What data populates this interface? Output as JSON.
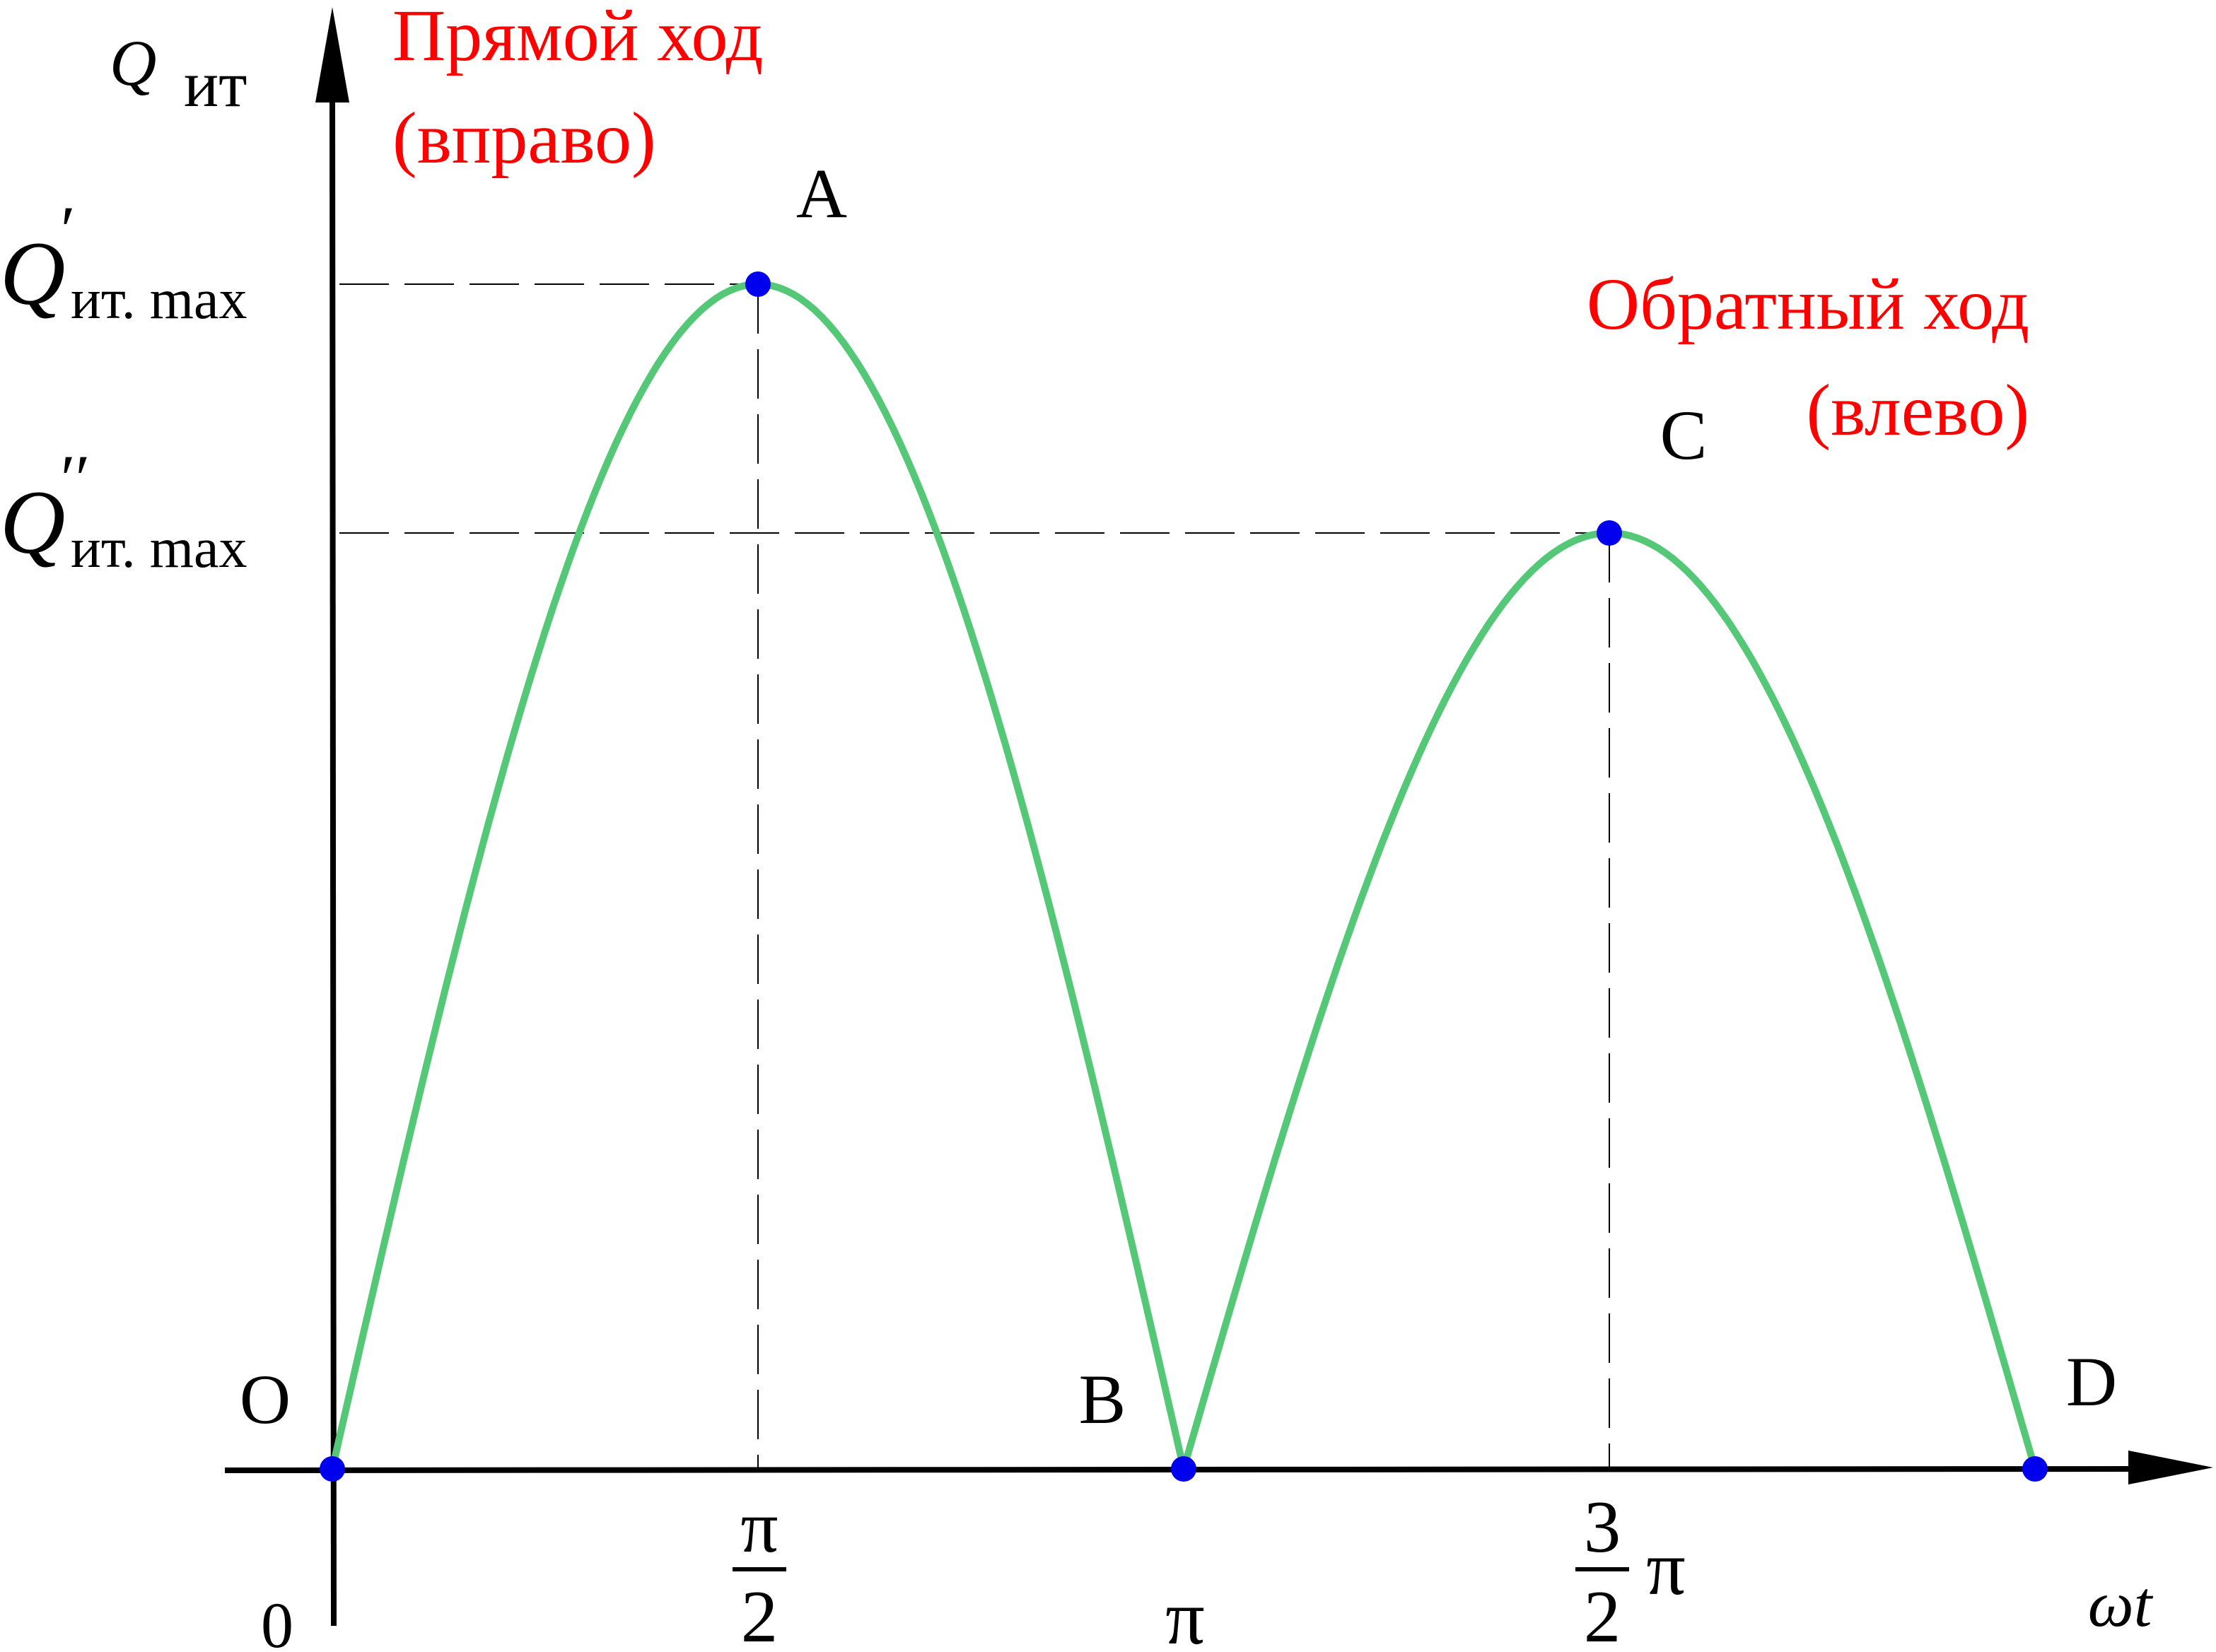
{
  "chart_data": {
    "type": "line",
    "title": "",
    "colors": {
      "curve": "#55c878",
      "axis": "#000000",
      "point": "#0000ee",
      "annotation": "#ff0000",
      "guide": "#000000"
    },
    "ylabel": {
      "main": "Q",
      "sub": "ит"
    },
    "xlabel": {
      "main": "ωt"
    },
    "origin_label": "0",
    "y_levels": [
      {
        "id": "qmax1",
        "main": "Q",
        "prime": "′",
        "sub": "ит. max",
        "value": 1.0
      },
      {
        "id": "qmax2",
        "main": "Q",
        "prime": "′′",
        "sub": "ит. max",
        "value": 0.79
      }
    ],
    "x_ticks": [
      {
        "x": 0.5,
        "kind": "frac",
        "num": "π",
        "den": "2"
      },
      {
        "x": 1.0,
        "kind": "plain",
        "text": "π"
      },
      {
        "x": 1.5,
        "kind": "mixed",
        "num": "3",
        "den": "2",
        "suffix": "π"
      }
    ],
    "points": [
      {
        "name": "O",
        "x": 0.0,
        "y": 0.0
      },
      {
        "name": "A",
        "x": 0.5,
        "y": 1.0
      },
      {
        "name": "B",
        "x": 1.0,
        "y": 0.0
      },
      {
        "name": "C",
        "x": 1.5,
        "y": 0.79
      },
      {
        "name": "D",
        "x": 2.0,
        "y": 0.0
      }
    ],
    "series": [
      {
        "segment": "forward",
        "peak": 1.0,
        "x_range": [
          0,
          1
        ]
      },
      {
        "segment": "backward",
        "peak": 0.79,
        "x_range": [
          1,
          2
        ]
      }
    ],
    "annotations": [
      {
        "id": "forward",
        "lines": [
          "Прямой ход",
          "(вправо)"
        ]
      },
      {
        "id": "backward",
        "lines": [
          "Обратный ход",
          "(влево)"
        ]
      }
    ],
    "xlim": [
      0,
      2
    ],
    "ylim": [
      0,
      1.0
    ],
    "grid": false,
    "legend": "none"
  }
}
